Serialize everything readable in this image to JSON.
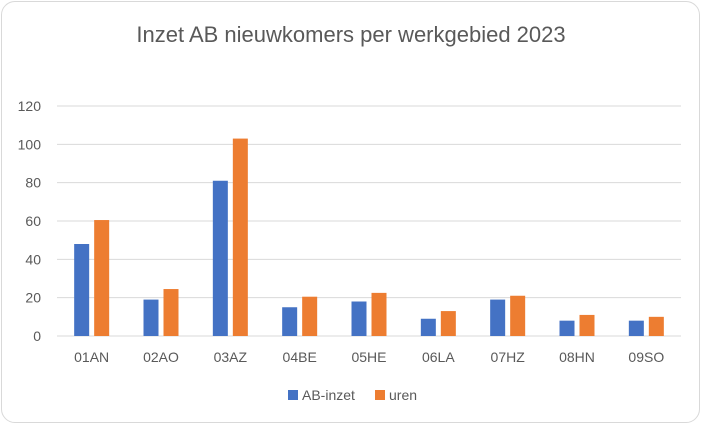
{
  "chart_data": {
    "type": "bar",
    "title": "Inzet AB nieuwkomers per werkgebied 2023",
    "xlabel": "",
    "ylabel": "",
    "categories": [
      "01AN",
      "02AO",
      "03AZ",
      "04BE",
      "05HE",
      "06LA",
      "07HZ",
      "08HN",
      "09SO"
    ],
    "series": [
      {
        "name": "AB-inzet",
        "color": "#4472c4",
        "values": [
          48,
          19,
          81,
          15,
          18,
          9,
          19,
          8,
          8
        ]
      },
      {
        "name": "uren",
        "color": "#ed7d31",
        "values": [
          60.5,
          24.5,
          103,
          20.5,
          22.5,
          13,
          21,
          11,
          10
        ]
      }
    ],
    "ylim": [
      0,
      120
    ],
    "yticks": [
      0,
      20,
      40,
      60,
      80,
      100,
      120
    ],
    "ytick_labels": [
      "0",
      "20",
      "40",
      "60",
      "80",
      "100",
      "120"
    ],
    "grid": true,
    "legend": "bottom-center"
  }
}
